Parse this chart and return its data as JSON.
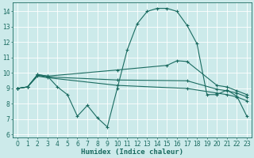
{
  "bg_color": "#cceaea",
  "line_color": "#1a6b60",
  "grid_color": "#ffffff",
  "xlabel": "Humidex (Indice chaleur)",
  "xlim": [
    -0.5,
    23.5
  ],
  "ylim": [
    5.8,
    14.6
  ],
  "yticks": [
    6,
    7,
    8,
    9,
    10,
    11,
    12,
    13,
    14
  ],
  "xticks": [
    0,
    1,
    2,
    3,
    4,
    5,
    6,
    7,
    8,
    9,
    10,
    11,
    12,
    13,
    14,
    15,
    16,
    17,
    18,
    19,
    20,
    21,
    22,
    23
  ],
  "curve1_x": [
    0,
    1,
    2,
    3,
    4,
    5,
    6,
    7,
    8,
    9,
    10,
    11,
    12,
    13,
    14,
    15,
    16,
    17,
    18,
    19,
    20,
    21,
    22,
    23
  ],
  "curve1_y": [
    9.0,
    9.1,
    9.9,
    9.8,
    9.1,
    8.6,
    7.2,
    7.9,
    7.1,
    6.5,
    9.0,
    11.5,
    13.2,
    14.0,
    14.2,
    14.2,
    14.0,
    13.1,
    11.9,
    8.6,
    8.6,
    8.9,
    8.5,
    7.2
  ],
  "curve2_x": [
    0,
    1,
    2,
    3,
    10,
    15,
    16,
    17,
    20,
    21,
    22,
    23
  ],
  "curve2_y": [
    9.0,
    9.1,
    9.9,
    9.8,
    10.2,
    10.5,
    10.8,
    10.75,
    9.2,
    9.1,
    8.85,
    8.6
  ],
  "curve3_x": [
    0,
    1,
    2,
    3,
    10,
    17,
    20,
    21,
    22,
    23
  ],
  "curve3_y": [
    9.0,
    9.1,
    9.85,
    9.75,
    9.55,
    9.5,
    8.95,
    8.85,
    8.7,
    8.45
  ],
  "curve4_x": [
    0,
    1,
    2,
    3,
    10,
    17,
    20,
    21,
    22,
    23
  ],
  "curve4_y": [
    9.0,
    9.1,
    9.8,
    9.7,
    9.2,
    9.0,
    8.7,
    8.6,
    8.45,
    8.2
  ]
}
